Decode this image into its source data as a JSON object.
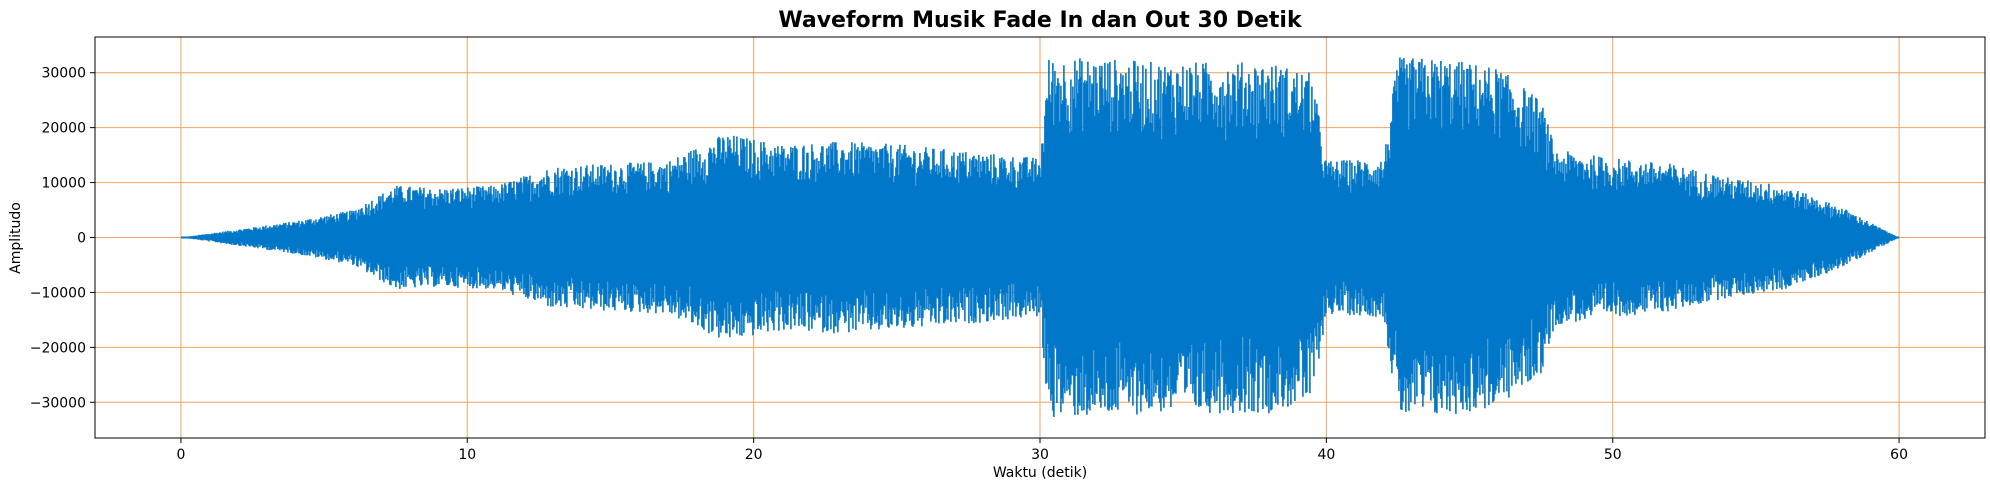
{
  "chart_data": {
    "type": "line",
    "title": "Waveform Musik Fade In dan Out 30 Detik",
    "xlabel": "Waktu (detik)",
    "ylabel": "Amplitudo",
    "xlim": [
      -3,
      63
    ],
    "ylim": [
      -36500,
      36500
    ],
    "xticks": [
      0,
      10,
      20,
      30,
      40,
      50,
      60
    ],
    "xtick_labels": [
      "0",
      "10",
      "20",
      "30",
      "40",
      "50",
      "60"
    ],
    "yticks": [
      -30000,
      -20000,
      -10000,
      0,
      10000,
      20000,
      30000
    ],
    "ytick_labels": [
      "−30000",
      "−20000",
      "−10000",
      "0",
      "10000",
      "20000",
      "30000"
    ],
    "grid": true,
    "grid_color": "#f4a460",
    "series": [
      {
        "color": "#0077c8",
        "envelope_time": [
          0,
          2,
          4,
          6,
          7.5,
          9,
          11,
          13,
          15,
          17,
          19,
          21,
          23,
          25,
          27,
          29,
          30,
          30.3,
          32,
          34,
          36,
          38,
          39.5,
          40,
          42,
          42.5,
          44,
          46,
          47.5,
          48,
          50,
          52,
          54,
          56,
          58,
          60
        ],
        "envelope_amplitude": [
          0,
          1500,
          3000,
          5000,
          9500,
          9000,
          9500,
          13000,
          13500,
          14000,
          19000,
          17000,
          17500,
          17000,
          16000,
          15000,
          14500,
          32800,
          32800,
          32000,
          32000,
          32000,
          30000,
          14000,
          14500,
          32800,
          32800,
          31000,
          25000,
          16000,
          14500,
          13500,
          11000,
          9500,
          5500,
          0
        ]
      }
    ]
  }
}
